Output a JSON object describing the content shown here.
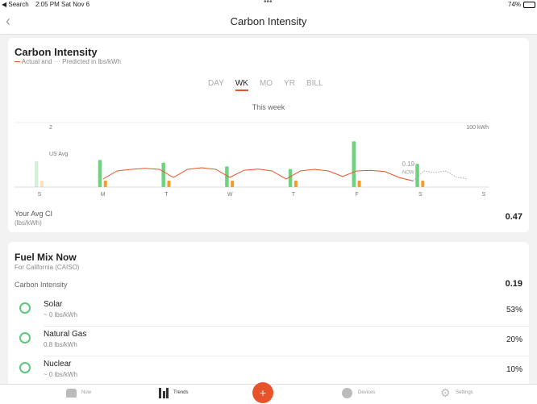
{
  "status_bar": {
    "back_app": "◀ Search",
    "time": "2:05 PM",
    "date": "Sat Nov 6",
    "battery": "74%"
  },
  "nav": {
    "title": "Carbon Intensity"
  },
  "intensity_card": {
    "title": "Carbon Intensity",
    "legend_actual": "Actual and",
    "legend_predicted": "Predicted in lbs/kWh",
    "tabs": [
      "DAY",
      "WK",
      "MO",
      "YR",
      "BILL"
    ],
    "selected_tab": 1,
    "period": "This week",
    "chart": {
      "type": "bar-line",
      "days": [
        "S",
        "M",
        "T",
        "W",
        "T",
        "F",
        "S",
        "S"
      ],
      "ylim": [
        0,
        2
      ],
      "yticks": [
        2
      ],
      "y2lim": [
        0,
        100
      ],
      "y2ticks": [
        {
          "value": 100,
          "label": "100 kWh"
        }
      ],
      "us_avg_label": "US Avg",
      "now_value_label": "0.19",
      "now_label": "NOW",
      "usage": {
        "name": "Usage",
        "color": "#6fd27f",
        "axis": "y2",
        "day_index": [
          0,
          1,
          2,
          3,
          4,
          5,
          6
        ],
        "values": [
          40,
          42,
          38,
          32,
          28,
          71,
          36
        ]
      },
      "solar": {
        "name": "Solar",
        "color": "#f39c2b",
        "axis": "y2",
        "day_index": [
          0,
          1,
          2,
          3,
          4,
          5,
          6
        ],
        "values": [
          10,
          10,
          10,
          10,
          10,
          10,
          10
        ]
      },
      "actual": {
        "name": "Actual",
        "color": "#e8532b",
        "values": [
          0.25,
          0.5,
          0.55,
          0.58,
          0.55,
          0.3,
          0.55,
          0.6,
          0.55,
          0.3,
          0.52,
          0.56,
          0.5,
          0.25,
          0.5,
          0.55,
          0.5,
          0.33,
          0.5,
          0.52,
          0.48,
          0.3,
          0.19
        ]
      },
      "predicted": {
        "name": "Predicted",
        "color": "#aaaaaa",
        "values": [
          0.19,
          0.5,
          0.45,
          0.5,
          0.3,
          0.25
        ]
      }
    },
    "avg_label": "Your Avg CI",
    "avg_unit": "(lbs/kWh)",
    "avg_value": "0.47"
  },
  "fuel_card": {
    "title": "Fuel Mix Now",
    "region": "For California (CAISO)",
    "ci_label": "Carbon Intensity",
    "ci_value": "0.19",
    "rows": [
      {
        "name": "Solar",
        "intensity": "~ 0 lbs/kWh",
        "share": "53%"
      },
      {
        "name": "Natural Gas",
        "intensity": "0.8 lbs/kWh",
        "share": "20%"
      },
      {
        "name": "Nuclear",
        "intensity": "~ 0 lbs/kWh",
        "share": "10%"
      }
    ]
  },
  "tab_bar": {
    "items": [
      "Now",
      "Trends",
      "Devices",
      "Settings"
    ]
  }
}
